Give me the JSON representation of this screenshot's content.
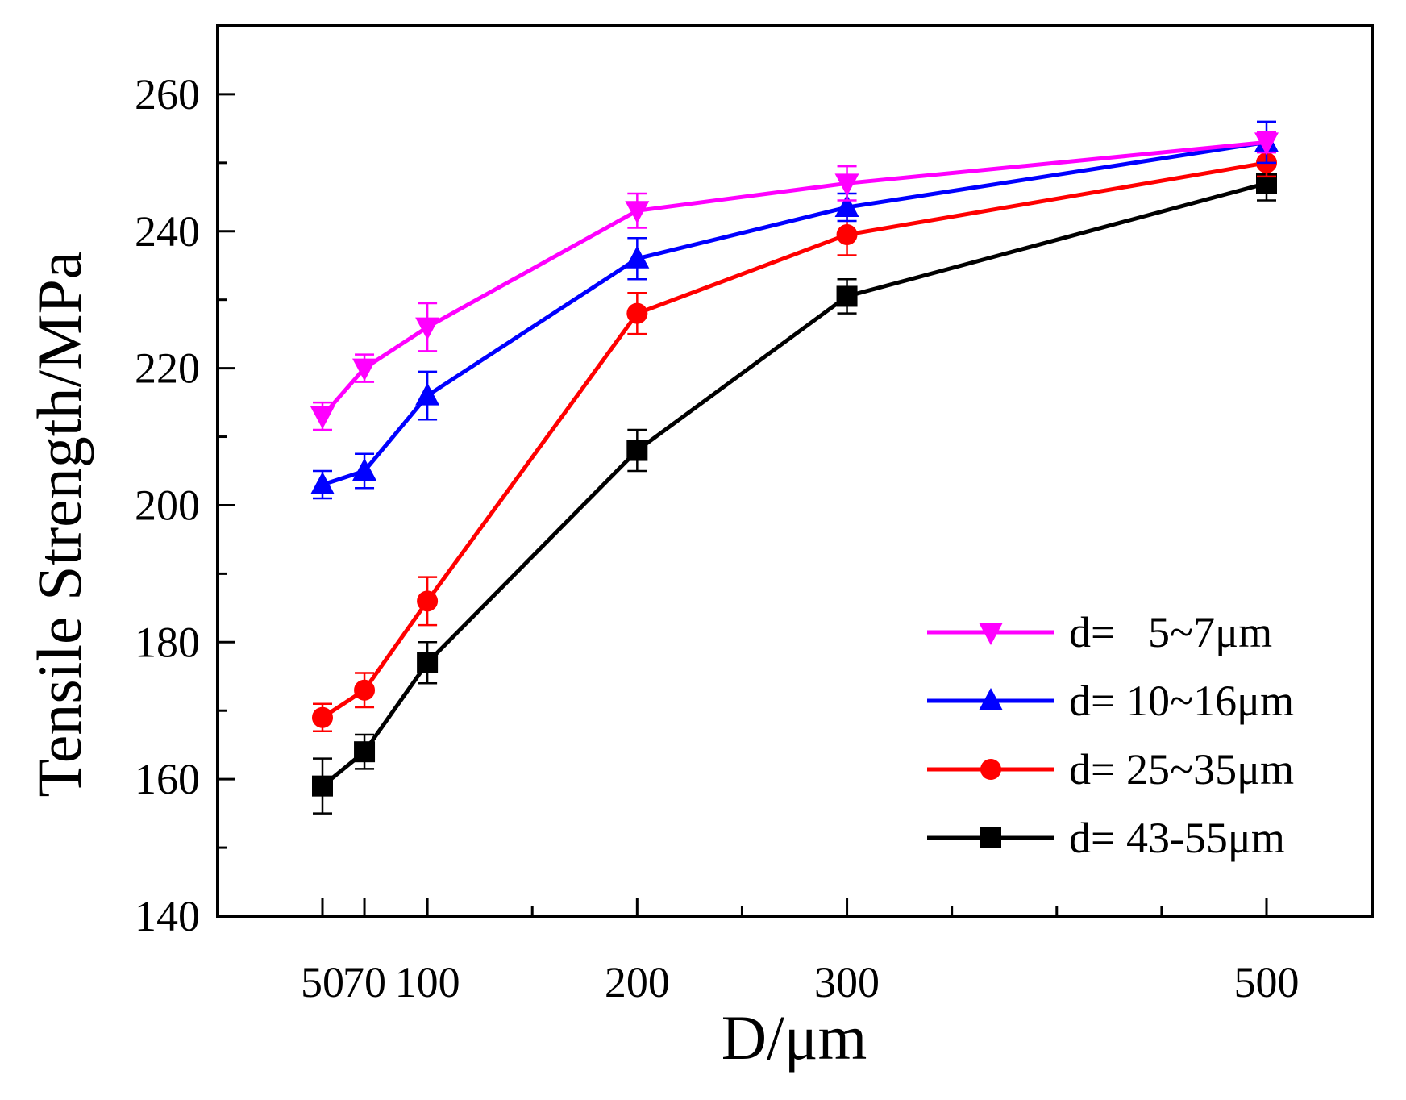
{
  "chart_data": {
    "type": "line",
    "xlabel": "D/μm",
    "ylabel": "Tensile Strength/MPa",
    "xlim": [
      0,
      550
    ],
    "ylim": [
      140,
      270
    ],
    "x_ticks": [
      50,
      70,
      100,
      200,
      300,
      500
    ],
    "x_tick_labels": [
      "50",
      "70",
      "100",
      "200",
      "300",
      "500"
    ],
    "y_ticks": [
      140,
      160,
      180,
      200,
      220,
      240,
      260
    ],
    "y_tick_labels": [
      "140",
      "160",
      "180",
      "200",
      "220",
      "240",
      "260"
    ],
    "legend_position": "bottom-right",
    "grid": false,
    "x": [
      50,
      70,
      100,
      200,
      300,
      500
    ],
    "series": [
      {
        "name": "d=   5~7μm",
        "color": "#ff00ff",
        "marker": "triangle-down",
        "values": [
          213,
          220,
          226,
          243,
          247,
          253
        ],
        "errors": [
          2,
          2,
          3.5,
          2.5,
          2.5,
          1.5
        ]
      },
      {
        "name": "d= 10~16μm",
        "color": "#0000ff",
        "marker": "triangle-up",
        "values": [
          203,
          205,
          216,
          236,
          243.5,
          253
        ],
        "errors": [
          2,
          2.5,
          3.5,
          3,
          2,
          3
        ]
      },
      {
        "name": "d= 25~35μm",
        "color": "#ff0000",
        "marker": "circle",
        "values": [
          169,
          173,
          186,
          228,
          239.5,
          250
        ],
        "errors": [
          2,
          2.5,
          3.5,
          3,
          3,
          2
        ]
      },
      {
        "name": "d= 43-55μm",
        "color": "#000000",
        "marker": "square",
        "values": [
          159,
          164,
          177,
          208,
          230.5,
          247
        ],
        "errors": [
          4,
          2.5,
          3,
          3,
          2.5,
          2.5
        ]
      }
    ]
  }
}
